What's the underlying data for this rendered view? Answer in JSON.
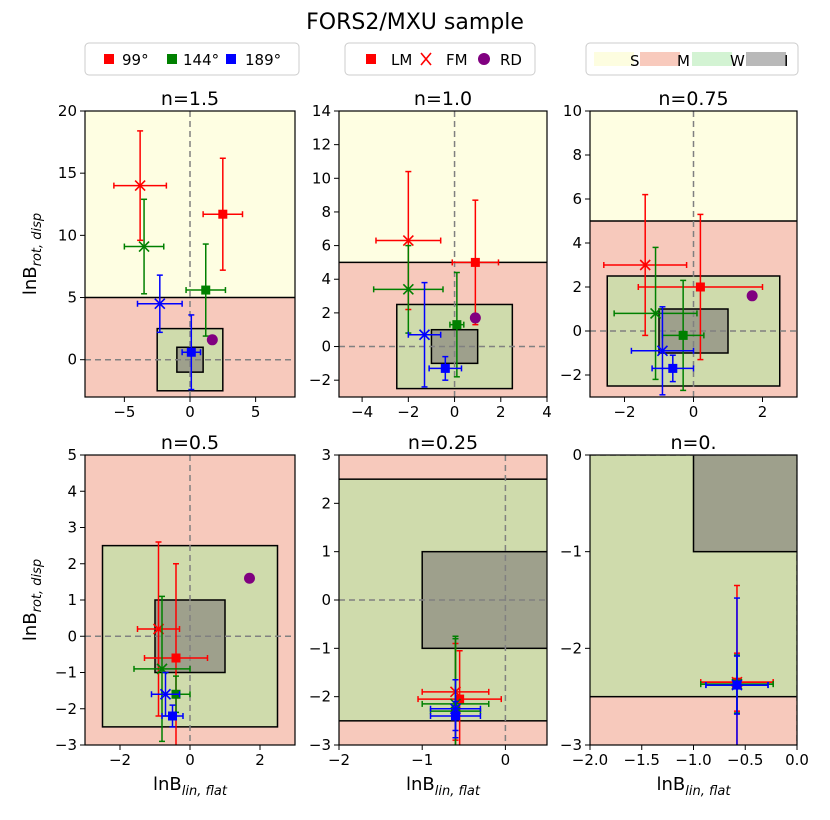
{
  "figure_title": "FORS2/MXU sample",
  "legends": {
    "angles": [
      {
        "label": "99°",
        "color": "#ff0000"
      },
      {
        "label": "144°",
        "color": "#008000"
      },
      {
        "label": "189°",
        "color": "#0000ff"
      }
    ],
    "markers": [
      {
        "label": "LM",
        "symbol": "square",
        "color": "#ff0000"
      },
      {
        "label": "FM",
        "symbol": "x",
        "color": "#ff0000"
      },
      {
        "label": "RD",
        "symbol": "circle",
        "color": "#800080"
      }
    ],
    "regions": [
      {
        "label": "S",
        "color": "#fdfde0"
      },
      {
        "label": "M",
        "color": "#f8cabd"
      },
      {
        "label": "W",
        "color": "#d3f3d3"
      },
      {
        "label": "I",
        "color": "#b9b9b9"
      }
    ]
  },
  "colors": {
    "strong": "#fefee2",
    "moderate": "#f7c9bc",
    "weak": "#cfdbac",
    "inconclusive": "#9ea08c",
    "red": "#ff0000",
    "green": "#008000",
    "blue": "#0000ff",
    "purple": "#800080"
  },
  "chart_data": [
    {
      "type": "scatter",
      "title": "n=1.5",
      "xlabel_base": "lnB",
      "xlabel_sub": "lin, flat",
      "ylabel_base": "lnB",
      "ylabel_sub": "rot, disp",
      "xlim": [
        -8,
        8
      ],
      "ylim": [
        -3,
        20
      ],
      "xticks": [
        -5,
        0,
        5
      ],
      "yticks": [
        0,
        5,
        10,
        15,
        20
      ],
      "xtick_labels": [
        "−5",
        "0",
        "5"
      ],
      "ytick_labels": [
        "0",
        "5",
        "10",
        "15",
        "20"
      ],
      "strong_threshold": 5,
      "points": [
        {
          "marker": "square",
          "color": "red",
          "x": 2.5,
          "y": 11.7,
          "xerr": 1.5,
          "yerr": 4.5
        },
        {
          "marker": "x",
          "color": "red",
          "x": -3.8,
          "y": 14.0,
          "xerr": 2.0,
          "yerr": 4.4
        },
        {
          "marker": "square",
          "color": "green",
          "x": 1.2,
          "y": 5.6,
          "xerr": 1.5,
          "yerr": 3.7
        },
        {
          "marker": "x",
          "color": "green",
          "x": -3.5,
          "y": 9.1,
          "xerr": 1.5,
          "yerr": 3.8
        },
        {
          "marker": "square",
          "color": "blue",
          "x": 0.1,
          "y": 0.6,
          "xerr": 0.7,
          "yerr": 3.0
        },
        {
          "marker": "x",
          "color": "blue",
          "x": -2.3,
          "y": 4.5,
          "xerr": 1.7,
          "yerr": 2.3
        },
        {
          "marker": "circle",
          "color": "purple",
          "x": 1.7,
          "y": 1.6
        }
      ]
    },
    {
      "type": "scatter",
      "title": "n=1.0",
      "xlabel_base": "lnB",
      "xlabel_sub": "lin, flat",
      "ylabel_base": "lnB",
      "ylabel_sub": "rot, disp",
      "xlim": [
        -5,
        4
      ],
      "ylim": [
        -3,
        14
      ],
      "xticks": [
        -4,
        -2,
        0,
        2,
        4
      ],
      "yticks": [
        -2,
        0,
        2,
        4,
        6,
        8,
        10,
        12,
        14
      ],
      "xtick_labels": [
        "−4",
        "−2",
        "0",
        "2",
        "4"
      ],
      "ytick_labels": [
        "−2",
        "0",
        "2",
        "4",
        "6",
        "8",
        "10",
        "12",
        "14"
      ],
      "strong_threshold": 5,
      "points": [
        {
          "marker": "square",
          "color": "red",
          "x": 0.9,
          "y": 5.0,
          "xerr": 1.0,
          "yerr": 3.7
        },
        {
          "marker": "x",
          "color": "red",
          "x": -2.0,
          "y": 6.3,
          "xerr": 1.4,
          "yerr": 4.1
        },
        {
          "marker": "square",
          "color": "green",
          "x": 0.1,
          "y": 1.3,
          "xerr": 0.3,
          "yerr": 3.1
        },
        {
          "marker": "x",
          "color": "green",
          "x": -2.0,
          "y": 3.4,
          "xerr": 1.5,
          "yerr": 2.6
        },
        {
          "marker": "square",
          "color": "blue",
          "x": -0.4,
          "y": -1.3,
          "xerr": 0.7,
          "yerr": 0.7
        },
        {
          "marker": "x",
          "color": "blue",
          "x": -1.3,
          "y": 0.7,
          "xerr": 0.7,
          "yerr": 3.1
        },
        {
          "marker": "circle",
          "color": "purple",
          "x": 0.9,
          "y": 1.7
        }
      ]
    },
    {
      "type": "scatter",
      "title": "n=0.75",
      "xlabel_base": "lnB",
      "xlabel_sub": "lin, flat",
      "ylabel_base": "lnB",
      "ylabel_sub": "rot, disp",
      "xlim": [
        -3,
        3
      ],
      "ylim": [
        -3,
        10
      ],
      "xticks": [
        -2,
        0,
        2
      ],
      "yticks": [
        -2,
        0,
        2,
        4,
        6,
        8,
        10
      ],
      "xtick_labels": [
        "−2",
        "0",
        "2"
      ],
      "ytick_labels": [
        "−2",
        "0",
        "2",
        "4",
        "6",
        "8",
        "10"
      ],
      "strong_threshold": 5,
      "points": [
        {
          "marker": "square",
          "color": "red",
          "x": 0.2,
          "y": 2.0,
          "xerr": 1.8,
          "yerr": 3.3
        },
        {
          "marker": "x",
          "color": "red",
          "x": -1.4,
          "y": 3.0,
          "xerr": 1.2,
          "yerr": 3.2
        },
        {
          "marker": "square",
          "color": "green",
          "x": -0.3,
          "y": -0.2,
          "xerr": 0.6,
          "yerr": 2.5
        },
        {
          "marker": "x",
          "color": "green",
          "x": -1.1,
          "y": 0.8,
          "xerr": 1.2,
          "yerr": 3.0
        },
        {
          "marker": "square",
          "color": "blue",
          "x": -0.6,
          "y": -1.7,
          "xerr": 0.6,
          "yerr": 0.6
        },
        {
          "marker": "x",
          "color": "blue",
          "x": -0.9,
          "y": -0.9,
          "xerr": 0.9,
          "yerr": 2.0
        },
        {
          "marker": "circle",
          "color": "purple",
          "x": 1.7,
          "y": 1.6
        }
      ]
    },
    {
      "type": "scatter",
      "title": "n=0.5",
      "xlabel_base": "lnB",
      "xlabel_sub": "lin, flat",
      "ylabel_base": "lnB",
      "ylabel_sub": "rot, disp",
      "xlim": [
        -3,
        3
      ],
      "ylim": [
        -3,
        5
      ],
      "xticks": [
        -2,
        0,
        2
      ],
      "yticks": [
        -3,
        -2,
        -1,
        0,
        1,
        2,
        3,
        4,
        5
      ],
      "xtick_labels": [
        "−2",
        "0",
        "2"
      ],
      "ytick_labels": [
        "−3",
        "−2",
        "−1",
        "0",
        "1",
        "2",
        "3",
        "4",
        "5"
      ],
      "strong_threshold": null,
      "points": [
        {
          "marker": "square",
          "color": "red",
          "x": -0.4,
          "y": -0.6,
          "xerr": 0.9,
          "yerr": 2.6
        },
        {
          "marker": "x",
          "color": "red",
          "x": -0.9,
          "y": 0.2,
          "xerr": 0.6,
          "yerr": 2.4
        },
        {
          "marker": "square",
          "color": "green",
          "x": -0.4,
          "y": -1.6,
          "xerr": 0.4,
          "yerr": 0.5
        },
        {
          "marker": "x",
          "color": "green",
          "x": -0.8,
          "y": -0.9,
          "xerr": 0.8,
          "yerr": 2.0
        },
        {
          "marker": "square",
          "color": "blue",
          "x": -0.5,
          "y": -2.2,
          "xerr": 0.3,
          "yerr": 0.3
        },
        {
          "marker": "x",
          "color": "blue",
          "x": -0.7,
          "y": -1.6,
          "xerr": 0.4,
          "yerr": 0.6
        },
        {
          "marker": "circle",
          "color": "purple",
          "x": 1.7,
          "y": 1.6
        }
      ]
    },
    {
      "type": "scatter",
      "title": "n=0.25",
      "xlabel_base": "lnB",
      "xlabel_sub": "lin, flat",
      "ylabel_base": "lnB",
      "ylabel_sub": "rot, disp",
      "xlim": [
        -2,
        0.5
      ],
      "ylim": [
        -3,
        3
      ],
      "xticks": [
        -2,
        -1,
        0
      ],
      "yticks": [
        -3,
        -2,
        -1,
        0,
        1,
        2,
        3
      ],
      "xtick_labels": [
        "−2",
        "−1",
        "0"
      ],
      "ytick_labels": [
        "−3",
        "−2",
        "−1",
        "0",
        "1",
        "2",
        "3"
      ],
      "strong_threshold": null,
      "points": [
        {
          "marker": "square",
          "color": "red",
          "x": -0.55,
          "y": -2.05,
          "xerr": 0.5,
          "yerr": 1.0
        },
        {
          "marker": "x",
          "color": "red",
          "x": -0.6,
          "y": -1.9,
          "xerr": 0.4,
          "yerr": 1.0
        },
        {
          "marker": "square",
          "color": "green",
          "x": -0.6,
          "y": -2.3,
          "xerr": 0.3,
          "yerr": 1.5
        },
        {
          "marker": "x",
          "color": "green",
          "x": -0.6,
          "y": -2.15,
          "xerr": 0.4,
          "yerr": 1.4
        },
        {
          "marker": "square",
          "color": "blue",
          "x": -0.6,
          "y": -2.4,
          "xerr": 0.3,
          "yerr": 0.3
        },
        {
          "marker": "x",
          "color": "blue",
          "x": -0.6,
          "y": -2.25,
          "xerr": 0.3,
          "yerr": 0.6
        }
      ]
    },
    {
      "type": "scatter",
      "title": "n=0.",
      "xlabel_base": "lnB",
      "xlabel_sub": "lin, flat",
      "ylabel_base": "lnB",
      "ylabel_sub": "rot, disp",
      "xlim": [
        -2,
        0
      ],
      "ylim": [
        -3,
        0
      ],
      "xticks": [
        -2,
        -1.5,
        -1,
        -0.5,
        0
      ],
      "yticks": [
        -3,
        -2,
        -1,
        0
      ],
      "xtick_labels": [
        "−2.0",
        "−1.5",
        "−1.0",
        "−0.5",
        "0.0"
      ],
      "ytick_labels": [
        "−3",
        "−2",
        "−1",
        "0"
      ],
      "strong_threshold": null,
      "points": [
        {
          "marker": "square",
          "color": "red",
          "x": -0.58,
          "y": -2.35,
          "xerr": 0.35,
          "yerr": 1.0
        },
        {
          "marker": "x",
          "color": "red",
          "x": -0.58,
          "y": -2.35,
          "xerr": 0.35,
          "yerr": 0.3
        },
        {
          "marker": "square",
          "color": "green",
          "x": -0.58,
          "y": -2.37,
          "xerr": 0.35,
          "yerr": 0.3
        },
        {
          "marker": "x",
          "color": "green",
          "x": -0.58,
          "y": -2.37,
          "xerr": 0.35,
          "yerr": 0.3
        },
        {
          "marker": "square",
          "color": "blue",
          "x": -0.58,
          "y": -2.38,
          "xerr": 0.3,
          "yerr": 0.9
        },
        {
          "marker": "x",
          "color": "blue",
          "x": -0.58,
          "y": -2.38,
          "xerr": 0.3,
          "yerr": 0.3
        }
      ]
    }
  ]
}
